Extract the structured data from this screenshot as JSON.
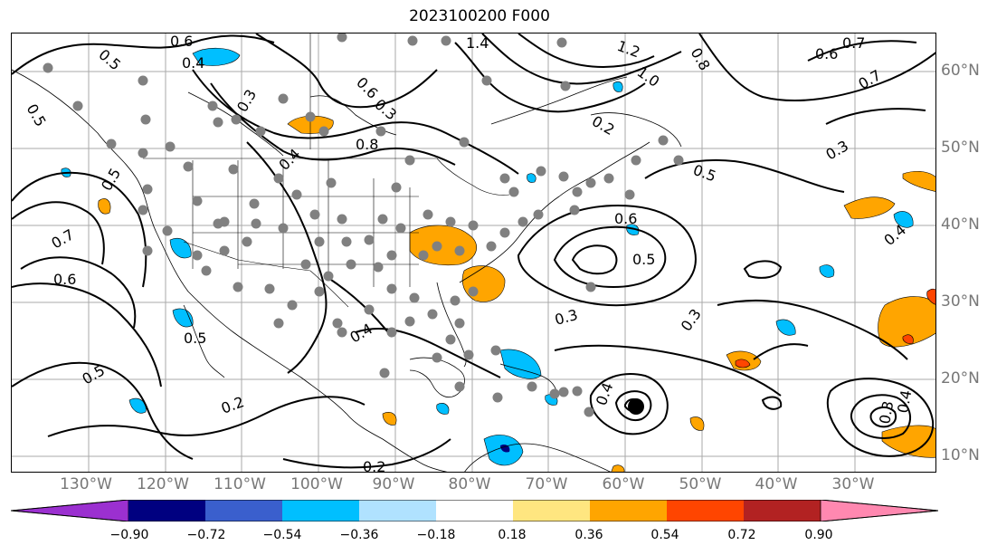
{
  "title": "2023100200 F000",
  "lon_labels": [
    "130°W",
    "120°W",
    "110°W",
    "100°W",
    "90°W",
    "80°W",
    "70°W",
    "60°W",
    "50°W",
    "40°W",
    "30°W"
  ],
  "lat_labels": [
    "60°N",
    "50°N",
    "40°N",
    "30°N",
    "20°N",
    "10°N"
  ],
  "colorbar": {
    "ticks": [
      "−0.90",
      "−0.72",
      "−0.54",
      "−0.36",
      "−0.18",
      "0.18",
      "0.36",
      "0.54",
      "0.72",
      "0.90"
    ],
    "colors": [
      "#9b30d0",
      "#000080",
      "#3a5fcd",
      "#00bfff",
      "#b0e2ff",
      "#ffffff",
      "#ffe680",
      "#ffa500",
      "#ff4500",
      "#b22222",
      "#ff88b0"
    ]
  },
  "contour_labels": [
    {
      "text": "0.6"
    },
    {
      "text": "0.5"
    },
    {
      "text": "0.4"
    },
    {
      "text": "0.3"
    },
    {
      "text": "1.4"
    },
    {
      "text": "1.2"
    },
    {
      "text": "1.0"
    },
    {
      "text": "0.8"
    },
    {
      "text": "0.7"
    },
    {
      "text": "0.6"
    },
    {
      "text": "0.7"
    },
    {
      "text": "0.6"
    },
    {
      "text": "0.8"
    },
    {
      "text": "0.4"
    },
    {
      "text": "0.5"
    },
    {
      "text": "0.7"
    },
    {
      "text": "0.6"
    },
    {
      "text": "0.6"
    },
    {
      "text": "0.5"
    },
    {
      "text": "0.3"
    },
    {
      "text": "0.4"
    },
    {
      "text": "0.5"
    },
    {
      "text": "0.5"
    },
    {
      "text": "0.2"
    },
    {
      "text": "0.2"
    },
    {
      "text": "0.4"
    },
    {
      "text": "0.3"
    },
    {
      "text": "0.3"
    },
    {
      "text": "0.2"
    },
    {
      "text": "0.3"
    },
    {
      "text": "0.5"
    },
    {
      "text": "0.4"
    },
    {
      "text": "0.5"
    },
    {
      "text": "0.3"
    },
    {
      "text": "0.4"
    }
  ],
  "colors": {
    "contour": "#000000",
    "grid": "#aaaaaa",
    "axis_label": "#777777",
    "station": "#808080",
    "negative_light": "#00bfff",
    "positive_medium": "#ffa500",
    "positive_strong": "#ff4500"
  }
}
